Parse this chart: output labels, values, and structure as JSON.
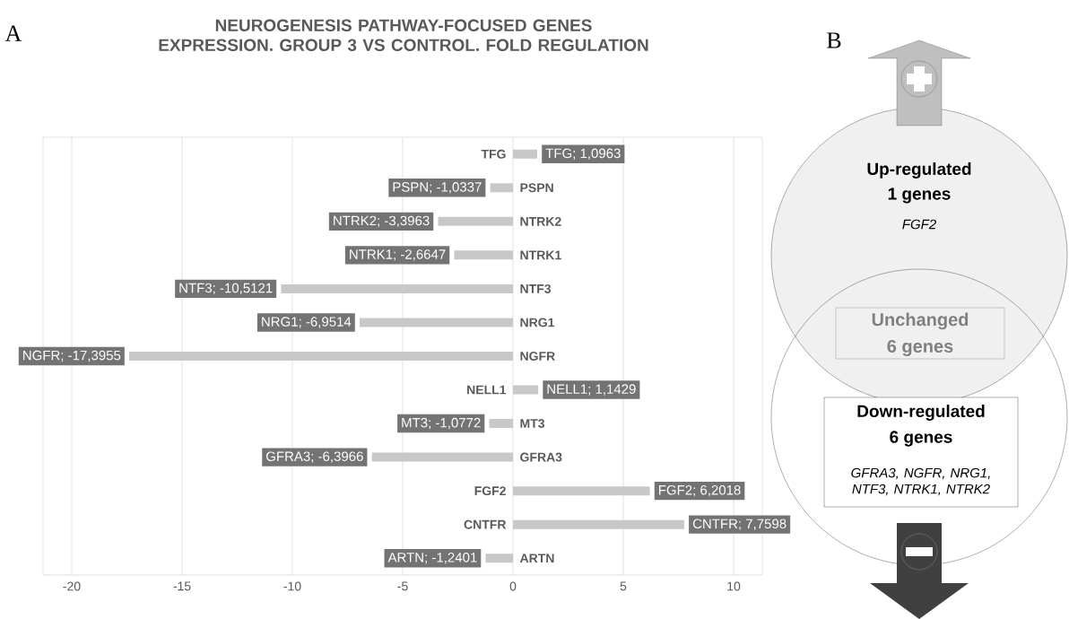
{
  "chart_data": [
    {
      "type": "bar",
      "orientation": "horizontal",
      "title": "NEUROGENESIS PATHWAY-FOCUSED GENES EXPRESSION. GROUP 3 VS CONTROL. FOLD REGULATION",
      "categories": [
        "TFG",
        "PSPN",
        "NTRK2",
        "NTRK1",
        "NTF3",
        "NRG1",
        "NGFR",
        "NELL1",
        "MT3",
        "GFRA3",
        "FGF2",
        "CNTFR",
        "ARTN"
      ],
      "values": [
        1.0963,
        -1.0337,
        -3.3963,
        -2.6647,
        -10.5121,
        -6.9514,
        -17.3955,
        1.1429,
        -1.0772,
        -6.3966,
        6.2018,
        7.7598,
        -1.2401
      ],
      "value_labels": [
        "TFG; 1,0963",
        "PSPN; -1,0337",
        "NTRK2; -3,3963",
        "NTRK1; -2,6647",
        "NTF3; -10,5121",
        "NRG1; -6,9514",
        "NGFR; -17,3955",
        "NELL1; 1,1429",
        "MT3; -1,0772",
        "GFRA3; -6,3966",
        "FGF2; 6,2018",
        "CNTFR; 7,7598",
        "ARTN; -1,2401"
      ],
      "color": "#c8c8c8",
      "xlim": [
        -21.3,
        11.3
      ],
      "xticks": [
        -20,
        -15,
        -10,
        -5,
        0,
        5,
        10
      ],
      "grid": "x",
      "annotations": [
        "A"
      ]
    },
    {
      "type": "other",
      "annotations": [
        "B",
        "Up-regulated",
        "1 genes",
        "FGF2",
        "Unchanged",
        "6 genes",
        "Down-regulated",
        "6 genes",
        "GFRA3, NGFR, NRG1, NTF3, NTRK1, NTRK2"
      ]
    }
  ]
}
